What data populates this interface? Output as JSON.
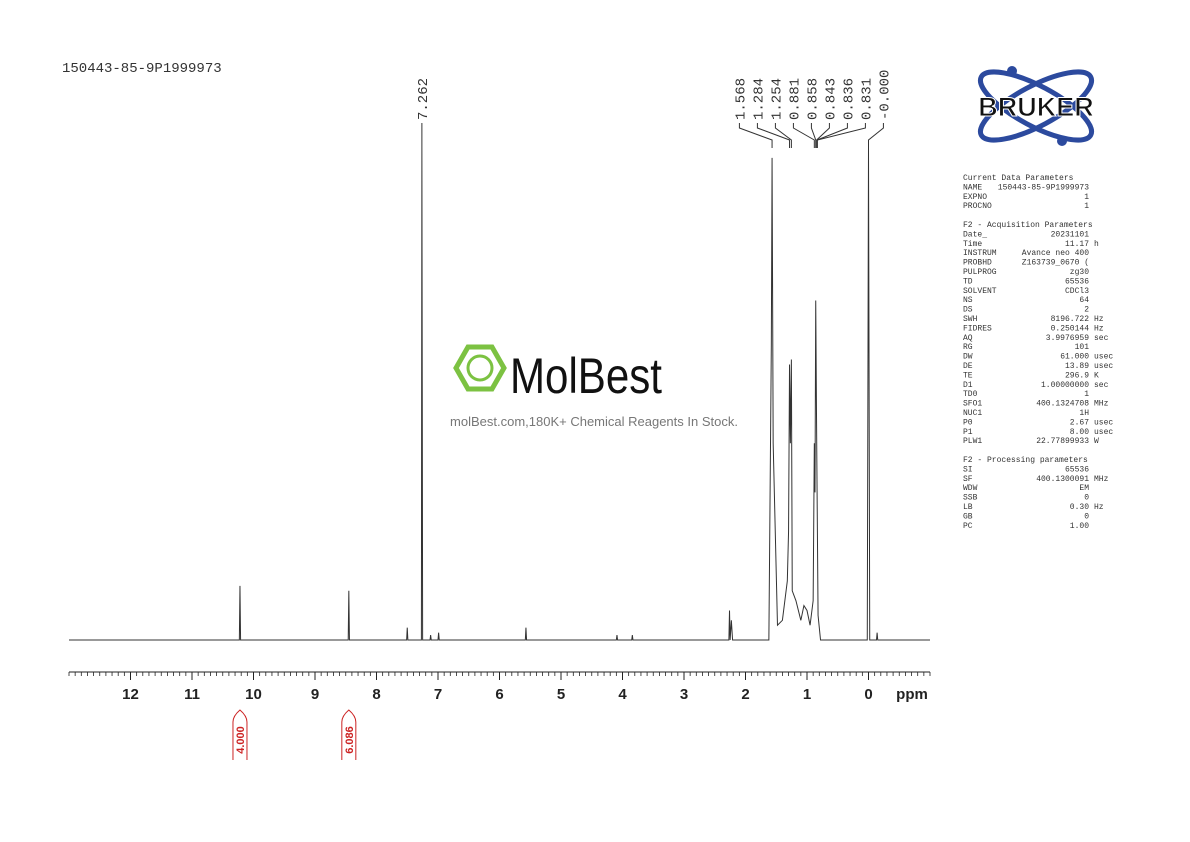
{
  "header": {
    "sample": "150443-85-9P1999973"
  },
  "logo": {
    "text": "BRUKER"
  },
  "watermark": {
    "brand": "MolBest",
    "tagline": "molBest.com,180K+ Chemical Reagents In Stock."
  },
  "parameters": {
    "sections": [
      {
        "title": "Current Data Parameters",
        "rows": [
          [
            "NAME",
            "150443-85-9P1999973"
          ],
          [
            "EXPNO",
            "1"
          ],
          [
            "PROCNO",
            "1"
          ]
        ]
      },
      {
        "title": "F2 - Acquisition Parameters",
        "rows": [
          [
            "Date_",
            "20231101"
          ],
          [
            "Time",
            "11.17",
            "h"
          ],
          [
            "INSTRUM",
            "Avance neo 400"
          ],
          [
            "PROBHD",
            "Z163739_0670 ("
          ],
          [
            "PULPROG",
            "zg30"
          ],
          [
            "TD",
            "65536"
          ],
          [
            "SOLVENT",
            "CDCl3"
          ],
          [
            "NS",
            "64"
          ],
          [
            "DS",
            "2"
          ],
          [
            "SWH",
            "8196.722",
            "Hz"
          ],
          [
            "FIDRES",
            "0.250144",
            "Hz"
          ],
          [
            "AQ",
            "3.9976959",
            "sec"
          ],
          [
            "RG",
            "101"
          ],
          [
            "DW",
            "61.000",
            "usec"
          ],
          [
            "DE",
            "13.89",
            "usec"
          ],
          [
            "TE",
            "296.9",
            "K"
          ],
          [
            "D1",
            "1.00000000",
            "sec"
          ],
          [
            "TD0",
            "1"
          ],
          [
            "SFO1",
            "400.1324708",
            "MHz"
          ],
          [
            "NUC1",
            "1H"
          ],
          [
            "P0",
            "2.67",
            "usec"
          ],
          [
            "P1",
            "8.00",
            "usec"
          ],
          [
            "PLW1",
            "22.77899933",
            "W"
          ]
        ]
      },
      {
        "title": "F2 - Processing parameters",
        "rows": [
          [
            "SI",
            "65536"
          ],
          [
            "SF",
            "400.1300091",
            "MHz"
          ],
          [
            "WDW",
            "EM"
          ],
          [
            "SSB",
            "0"
          ],
          [
            "LB",
            "0.30",
            "Hz"
          ],
          [
            "GB",
            "0"
          ],
          [
            "PC",
            "1.00"
          ]
        ]
      }
    ]
  },
  "chart_data": {
    "type": "line",
    "x_label": "ppm",
    "color": "#333333",
    "xlim": [
      13,
      -1
    ],
    "ylim": [
      0,
      100
    ],
    "xticks": [
      12,
      11,
      10,
      9,
      8,
      7,
      6,
      5,
      4,
      3,
      2,
      1,
      0
    ],
    "minor_tick_step": 0.1,
    "x": [
      13,
      10.23,
      10.22,
      10.21,
      8.46,
      8.45,
      8.44,
      7.51,
      7.5,
      7.49,
      7.27,
      7.262,
      7.25,
      7.13,
      7.12,
      7.11,
      7.0,
      6.99,
      6.98,
      5.58,
      5.57,
      5.56,
      4.1,
      4.09,
      4.08,
      3.85,
      3.84,
      3.83,
      2.27,
      2.26,
      2.25,
      2.23,
      2.21,
      1.62,
      1.58,
      1.568,
      1.55,
      1.48,
      1.4,
      1.32,
      1.3,
      1.284,
      1.27,
      1.254,
      1.24,
      1.18,
      1.1,
      1.05,
      1.0,
      0.95,
      0.9,
      0.881,
      0.87,
      0.858,
      0.845,
      0.836,
      0.82,
      0.78,
      0.02,
      0.0,
      -0.02,
      -0.13,
      -0.14,
      -0.15,
      -1
    ],
    "values": [
      0,
      0,
      11,
      0,
      0,
      10,
      0,
      0,
      2.5,
      0,
      0,
      100,
      0,
      0,
      1,
      0,
      0,
      1.5,
      0,
      0,
      2.5,
      0,
      0,
      1,
      0,
      0,
      1,
      0,
      0,
      6,
      0,
      4,
      0,
      0,
      60,
      98,
      40,
      3,
      4,
      12,
      22,
      56,
      40,
      57,
      10,
      8,
      4,
      7,
      6,
      3,
      8,
      40,
      30,
      69,
      45,
      30,
      5,
      0,
      0,
      100,
      0,
      0,
      1.5,
      0,
      0
    ],
    "peaks": [
      {
        "value": 7.262,
        "label": "7.262"
      },
      {
        "value": 1.568,
        "label": "1.568"
      },
      {
        "value": 1.284,
        "label": "1.284"
      },
      {
        "value": 1.254,
        "label": "1.254"
      },
      {
        "value": 0.881,
        "label": "0.881"
      },
      {
        "value": 0.858,
        "label": "0.858"
      },
      {
        "value": 0.843,
        "label": "0.843"
      },
      {
        "value": 0.836,
        "label": "0.836"
      },
      {
        "value": 0.831,
        "label": "0.831"
      },
      {
        "value": 0,
        "label": "-0.000"
      }
    ],
    "integrals": [
      {
        "x": 10.22,
        "value": 4,
        "label": "4.000"
      },
      {
        "x": 8.45,
        "value": 6.086,
        "label": "6.086"
      }
    ]
  }
}
